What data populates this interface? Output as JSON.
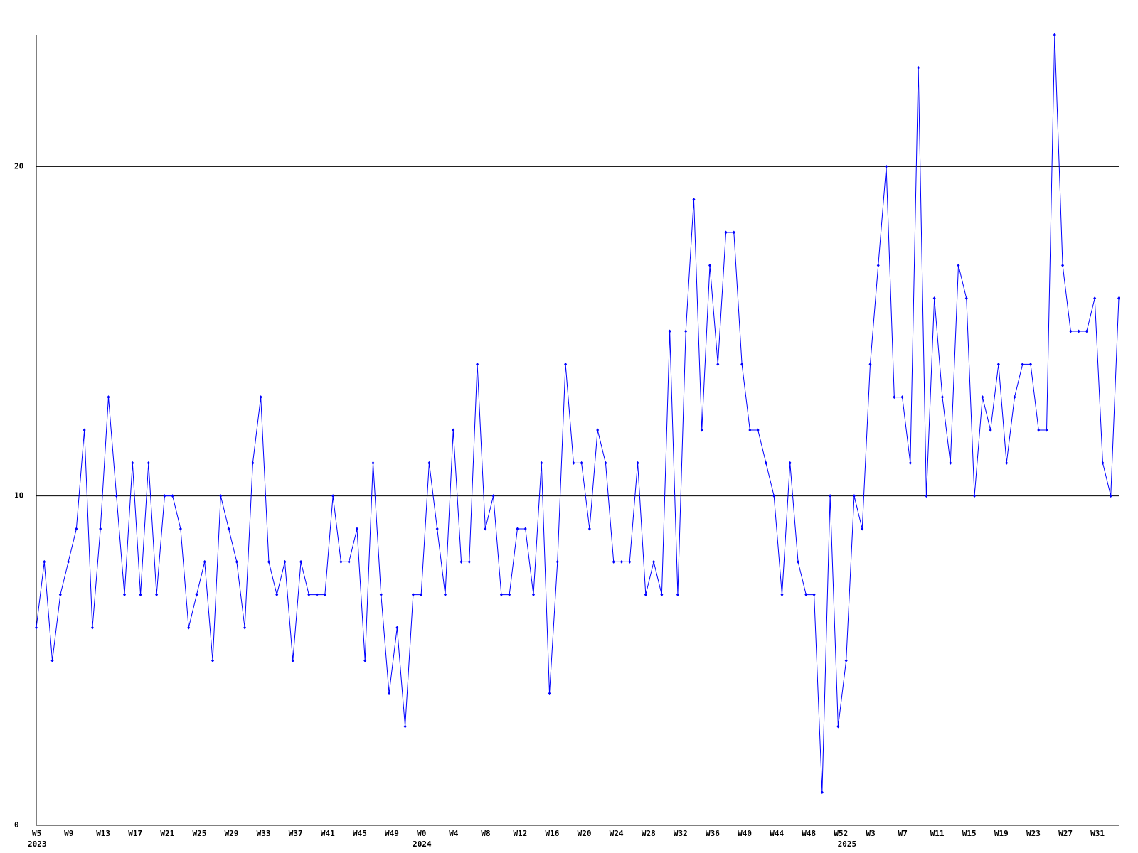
{
  "chart_data": {
    "type": "line",
    "categories": [
      "W5",
      null,
      null,
      null,
      "W9",
      null,
      null,
      null,
      "W13",
      null,
      null,
      null,
      "W17",
      null,
      null,
      null,
      "W21",
      null,
      null,
      null,
      "W25",
      null,
      null,
      null,
      "W29",
      null,
      null,
      null,
      "W33",
      null,
      null,
      null,
      "W37",
      null,
      null,
      null,
      "W41",
      null,
      null,
      null,
      "W45",
      null,
      null,
      null,
      "W49",
      null,
      null,
      null,
      "W0",
      null,
      null,
      null,
      "W4",
      null,
      null,
      null,
      "W8",
      null,
      null,
      null,
      "W12",
      null,
      null,
      null,
      "W16",
      null,
      null,
      null,
      "W20",
      null,
      null,
      null,
      "W24",
      null,
      null,
      null,
      "W28",
      null,
      null,
      null,
      "W32",
      null,
      null,
      null,
      "W36",
      null,
      null,
      null,
      "W40",
      null,
      null,
      null,
      "W44",
      null,
      null,
      null,
      "W48",
      null,
      null,
      null,
      "W52",
      null,
      null,
      null,
      "W3",
      null,
      null,
      null,
      "W7",
      null,
      null,
      null,
      "W11",
      null,
      null,
      null,
      "W15",
      null,
      null,
      null,
      "W19",
      null,
      null,
      null,
      "W23",
      null,
      null,
      null,
      "W27",
      null,
      null,
      null,
      "W31",
      null,
      null,
      null
    ],
    "x_sublabels": [
      "2023",
      null,
      null,
      null,
      null,
      null,
      null,
      null,
      null,
      null,
      null,
      null,
      null,
      null,
      null,
      null,
      null,
      null,
      null,
      null,
      null,
      null,
      null,
      null,
      null,
      null,
      null,
      null,
      null,
      null,
      null,
      null,
      null,
      null,
      null,
      null,
      null,
      null,
      null,
      null,
      null,
      null,
      null,
      null,
      null,
      null,
      null,
      null,
      "2024",
      null,
      null,
      null,
      null,
      null,
      null,
      null,
      null,
      null,
      null,
      null,
      null,
      null,
      null,
      null,
      null,
      null,
      null,
      null,
      null,
      null,
      null,
      null,
      null,
      null,
      null,
      null,
      null,
      null,
      null,
      null,
      null,
      null,
      null,
      null,
      null,
      null,
      null,
      null,
      null,
      null,
      null,
      null,
      null,
      null,
      null,
      null,
      null,
      null,
      null,
      null,
      null,
      "2025",
      null,
      null,
      null,
      null,
      null,
      null,
      null,
      null,
      null,
      null,
      null,
      null,
      null,
      null,
      null,
      null,
      null,
      null,
      null,
      null,
      null,
      null,
      null,
      null,
      null,
      null,
      null,
      null,
      null,
      null,
      null,
      null,
      null,
      null
    ],
    "series": [
      {
        "color": "#0000ff",
        "values": [
          6,
          8,
          5,
          7,
          8,
          9,
          12,
          6,
          9,
          13,
          10,
          7,
          11,
          7,
          11,
          7,
          10,
          10,
          9,
          6,
          7,
          8,
          5,
          10,
          9,
          8,
          6,
          11,
          13,
          8,
          7,
          8,
          5,
          8,
          7,
          7,
          7,
          10,
          8,
          8,
          9,
          5,
          11,
          7,
          4,
          6,
          3,
          7,
          7,
          11,
          9,
          7,
          12,
          8,
          8,
          14,
          9,
          10,
          7,
          7,
          9,
          9,
          7,
          11,
          4,
          8,
          14,
          11,
          11,
          9,
          12,
          11,
          8,
          8,
          8,
          11,
          7,
          8,
          7,
          15,
          7,
          15,
          19,
          12,
          17,
          14,
          18,
          18,
          14,
          12,
          12,
          11,
          10,
          7,
          11,
          8,
          7,
          7,
          1,
          10,
          3,
          5,
          10,
          9,
          14,
          17,
          20,
          13,
          13,
          11,
          23,
          10,
          16,
          13,
          11,
          17,
          16,
          10,
          13,
          12,
          14,
          11,
          13,
          14,
          14,
          12,
          12,
          24,
          17,
          15,
          15,
          15,
          16,
          11,
          10,
          16
        ]
      }
    ],
    "ylim": [
      0,
      24
    ],
    "yticks": [
      0,
      10,
      20
    ],
    "grid": true
  }
}
